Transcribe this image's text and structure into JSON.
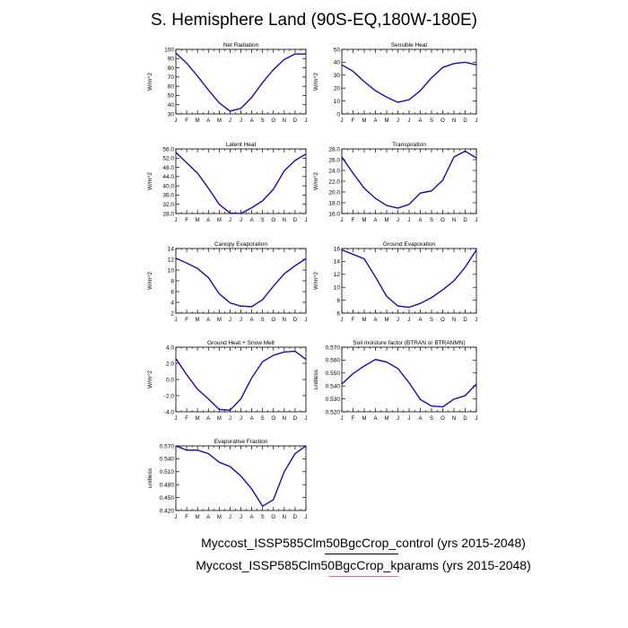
{
  "figure": {
    "title": "S. Hemisphere Land (90S-EQ,180W-180E)",
    "legend": [
      {
        "label": "Myccost_ISSP585Clm50BgcCrop_control (yrs 2015-2048)",
        "color": "#000000"
      },
      {
        "label": "Myccost_ISSP585Clm50BgcCrop_kparams (yrs 2015-2048)",
        "color": "#ff66aa"
      }
    ],
    "series_colors": {
      "control": "#000000",
      "kparams": "#3300cc"
    }
  },
  "chart_data": [
    {
      "type": "line",
      "title": "Net Radiation",
      "ylabel": "W/m^2",
      "categories": [
        "J",
        "F",
        "M",
        "A",
        "M",
        "J",
        "J",
        "A",
        "S",
        "O",
        "N",
        "D",
        "J"
      ],
      "ylim": [
        30,
        100
      ],
      "yticks": [
        "30",
        "40",
        "50",
        "60",
        "70",
        "80",
        "90",
        "100"
      ],
      "ytick_values": [
        30,
        40,
        50,
        60,
        70,
        80,
        90,
        100
      ],
      "series": [
        {
          "name": "control",
          "values": [
            96,
            85,
            71,
            56,
            42,
            33,
            36,
            48,
            64,
            78,
            89,
            95,
            95
          ]
        },
        {
          "name": "kparams",
          "values": [
            96,
            85,
            71,
            56,
            42,
            33,
            36,
            48,
            64,
            78,
            89,
            95,
            95
          ]
        }
      ]
    },
    {
      "type": "line",
      "title": "Sensible Heat",
      "ylabel": "W/m^2",
      "categories": [
        "J",
        "F",
        "M",
        "A",
        "M",
        "J",
        "J",
        "A",
        "S",
        "O",
        "N",
        "D",
        "J"
      ],
      "ylim": [
        0,
        50
      ],
      "yticks": [
        "0",
        "10",
        "20",
        "30",
        "40",
        "50"
      ],
      "ytick_values": [
        0,
        10,
        20,
        30,
        40,
        50
      ],
      "series": [
        {
          "name": "control",
          "values": [
            38,
            33,
            25,
            18,
            13,
            9,
            11,
            18,
            28,
            36,
            39,
            40,
            38
          ]
        },
        {
          "name": "kparams",
          "values": [
            38,
            33,
            25,
            18,
            13,
            9,
            11,
            18,
            28,
            36,
            39,
            40,
            38
          ]
        }
      ]
    },
    {
      "type": "line",
      "title": "Latent Heat",
      "ylabel": "W/m^2",
      "categories": [
        "J",
        "F",
        "M",
        "A",
        "M",
        "J",
        "J",
        "A",
        "S",
        "O",
        "N",
        "D",
        "J"
      ],
      "ylim": [
        28,
        56
      ],
      "yticks": [
        "28.0",
        "32.0",
        "36.0",
        "40.0",
        "44.0",
        "48.0",
        "52.0",
        "56.0"
      ],
      "ytick_values": [
        28,
        32,
        36,
        40,
        44,
        48,
        52,
        56
      ],
      "series": [
        {
          "name": "control",
          "values": [
            54.5,
            50,
            45.5,
            39,
            32,
            28.2,
            28,
            30.5,
            33.5,
            38.5,
            46.5,
            51,
            53.8
          ]
        },
        {
          "name": "kparams",
          "values": [
            54.5,
            50,
            45.5,
            39,
            32,
            28.2,
            28,
            30.5,
            33.5,
            38.5,
            46.5,
            51,
            53.8
          ]
        }
      ]
    },
    {
      "type": "line",
      "title": "Transpiration",
      "ylabel": "W/m^2",
      "categories": [
        "J",
        "F",
        "M",
        "A",
        "M",
        "J",
        "J",
        "A",
        "S",
        "O",
        "N",
        "D",
        "J"
      ],
      "ylim": [
        16,
        28
      ],
      "yticks": [
        "16.0",
        "18.0",
        "20.0",
        "22.0",
        "24.0",
        "26.0",
        "28.0"
      ],
      "ytick_values": [
        16,
        18,
        20,
        22,
        24,
        26,
        28
      ],
      "series": [
        {
          "name": "control",
          "values": [
            26.5,
            23.5,
            20.7,
            18.8,
            17.5,
            17,
            17.7,
            19.8,
            20.2,
            22.2,
            26.5,
            27.6,
            26.3
          ]
        },
        {
          "name": "kparams",
          "values": [
            26.5,
            23.5,
            20.7,
            18.8,
            17.5,
            17,
            17.7,
            19.8,
            20.2,
            22.2,
            26.5,
            27.6,
            26.3
          ]
        }
      ]
    },
    {
      "type": "line",
      "title": "Canopy Evaporation",
      "ylabel": "W/m^2",
      "categories": [
        "J",
        "F",
        "M",
        "A",
        "M",
        "J",
        "J",
        "A",
        "S",
        "O",
        "N",
        "D",
        "J"
      ],
      "ylim": [
        2,
        14
      ],
      "yticks": [
        "2",
        "4",
        "6",
        "8",
        "10",
        "12",
        "14"
      ],
      "ytick_values": [
        2,
        4,
        6,
        8,
        10,
        12,
        14
      ],
      "series": [
        {
          "name": "control",
          "values": [
            12.2,
            11.3,
            10.3,
            8.6,
            5.6,
            3.9,
            3.3,
            3.2,
            4.5,
            7,
            9.3,
            10.8,
            12.1
          ]
        },
        {
          "name": "kparams",
          "values": [
            12.2,
            11.3,
            10.3,
            8.6,
            5.6,
            3.9,
            3.3,
            3.2,
            4.5,
            7,
            9.3,
            10.8,
            12.1
          ]
        }
      ]
    },
    {
      "type": "line",
      "title": "Ground Evaporation",
      "ylabel": "W/m^2",
      "categories": [
        "J",
        "F",
        "M",
        "A",
        "M",
        "J",
        "J",
        "A",
        "S",
        "O",
        "N",
        "D",
        "J"
      ],
      "ylim": [
        6,
        16
      ],
      "yticks": [
        "6",
        "8",
        "10",
        "12",
        "14",
        "16"
      ],
      "ytick_values": [
        6,
        8,
        10,
        12,
        14,
        16
      ],
      "series": [
        {
          "name": "control",
          "values": [
            15.8,
            15.1,
            14.4,
            11.6,
            8.6,
            7.1,
            6.9,
            7.5,
            8.4,
            9.6,
            11,
            13.1,
            15.8
          ]
        },
        {
          "name": "kparams",
          "values": [
            15.8,
            15.1,
            14.4,
            11.6,
            8.6,
            7.1,
            6.9,
            7.5,
            8.4,
            9.6,
            11,
            13.1,
            15.8
          ]
        }
      ]
    },
    {
      "type": "line",
      "title": "Ground Heat + Snow Melt",
      "ylabel": "W/m^2",
      "categories": [
        "J",
        "F",
        "M",
        "A",
        "M",
        "J",
        "J",
        "A",
        "S",
        "O",
        "N",
        "D",
        "J"
      ],
      "ylim": [
        -4,
        4
      ],
      "yticks": [
        "-4.0",
        "-2.0",
        "0.0",
        "2.0",
        "4.0"
      ],
      "ytick_values": [
        -4,
        -2,
        0,
        2,
        4
      ],
      "series": [
        {
          "name": "control",
          "values": [
            2.6,
            0.6,
            -1.2,
            -2.4,
            -3.7,
            -3.8,
            -2.4,
            0.2,
            2.2,
            3,
            3.4,
            3.5,
            2.5
          ]
        },
        {
          "name": "kparams",
          "values": [
            2.6,
            0.6,
            -1.2,
            -2.4,
            -3.7,
            -3.8,
            -2.4,
            0.2,
            2.2,
            3,
            3.4,
            3.5,
            2.5
          ]
        }
      ]
    },
    {
      "type": "line",
      "title": "Soil moisture factor (BTRAN or BTRANMN)",
      "ylabel": "unitless",
      "categories": [
        "J",
        "F",
        "M",
        "A",
        "M",
        "J",
        "J",
        "A",
        "S",
        "O",
        "N",
        "D",
        "J"
      ],
      "ylim": [
        0.52,
        0.57
      ],
      "yticks": [
        "0.520",
        "0.530",
        "0.540",
        "0.550",
        "0.560",
        "0.570"
      ],
      "ytick_values": [
        0.52,
        0.53,
        0.54,
        0.55,
        0.56,
        0.57
      ],
      "series": [
        {
          "name": "control",
          "values": [
            0.5415,
            0.5495,
            0.5555,
            0.5605,
            0.5585,
            0.5535,
            0.5425,
            0.5295,
            0.5245,
            0.5238,
            0.5298,
            0.5325,
            0.5415
          ]
        },
        {
          "name": "kparams",
          "values": [
            0.5415,
            0.5495,
            0.5555,
            0.5605,
            0.5585,
            0.5535,
            0.5425,
            0.5295,
            0.5245,
            0.5238,
            0.5298,
            0.5325,
            0.5415
          ]
        }
      ]
    },
    {
      "type": "line",
      "title": "Evaporative Fraction",
      "ylabel": "unitless",
      "categories": [
        "J",
        "F",
        "M",
        "A",
        "M",
        "J",
        "J",
        "A",
        "S",
        "O",
        "N",
        "D",
        "J"
      ],
      "ylim": [
        0.42,
        0.57
      ],
      "yticks": [
        "0.420",
        "0.450",
        "0.480",
        "0.510",
        "0.540",
        "0.570"
      ],
      "ytick_values": [
        0.42,
        0.45,
        0.48,
        0.51,
        0.54,
        0.57
      ],
      "series": [
        {
          "name": "control",
          "values": [
            0.57,
            0.56,
            0.56,
            0.552,
            0.532,
            0.522,
            0.5,
            0.47,
            0.43,
            0.445,
            0.51,
            0.552,
            0.57
          ]
        },
        {
          "name": "kparams",
          "values": [
            0.57,
            0.56,
            0.56,
            0.552,
            0.532,
            0.522,
            0.5,
            0.47,
            0.43,
            0.445,
            0.51,
            0.552,
            0.57
          ]
        }
      ]
    }
  ]
}
